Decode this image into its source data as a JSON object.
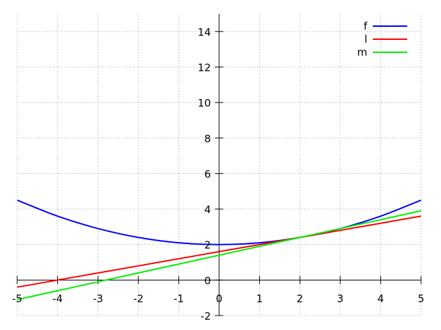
{
  "chart_data": {
    "type": "line",
    "title": "",
    "xlabel": "",
    "ylabel": "",
    "xlim": [
      -5,
      5
    ],
    "ylim": [
      -2,
      15
    ],
    "grid": true,
    "legend_position": "top-right",
    "x_ticks": [
      "-5",
      "-4",
      "-3",
      "-2",
      "-1",
      "0",
      "1",
      "2",
      "3",
      "4",
      "5"
    ],
    "x_tick_values": [
      -5,
      -4,
      -3,
      -2,
      -1,
      0,
      1,
      2,
      3,
      4,
      5
    ],
    "y_ticks": [
      "-2",
      "0",
      "2",
      "4",
      "6",
      "8",
      "10",
      "12",
      "14"
    ],
    "y_tick_values": [
      -2,
      0,
      2,
      4,
      6,
      8,
      10,
      12,
      14
    ],
    "x": [
      -5,
      -4,
      -3,
      -2,
      -1,
      0,
      1,
      2,
      3,
      4,
      5
    ],
    "series": [
      {
        "name": "f",
        "color": "#0000ff",
        "values": [
          4.5,
          3.6,
          2.9,
          2.4,
          2.1,
          2.0,
          2.1,
          2.4,
          2.9,
          3.6,
          4.5
        ]
      },
      {
        "name": "l",
        "color": "#ff0000",
        "values": [
          -0.4,
          0.0,
          0.4,
          0.8,
          1.2,
          1.6,
          2.0,
          2.4,
          2.8,
          3.2,
          3.6
        ]
      },
      {
        "name": "m",
        "color": "#00ee00",
        "values": [
          -1.1,
          -0.6,
          -0.1,
          0.4,
          0.9,
          1.4,
          1.9,
          2.4,
          2.9,
          3.4,
          3.9
        ]
      }
    ]
  }
}
